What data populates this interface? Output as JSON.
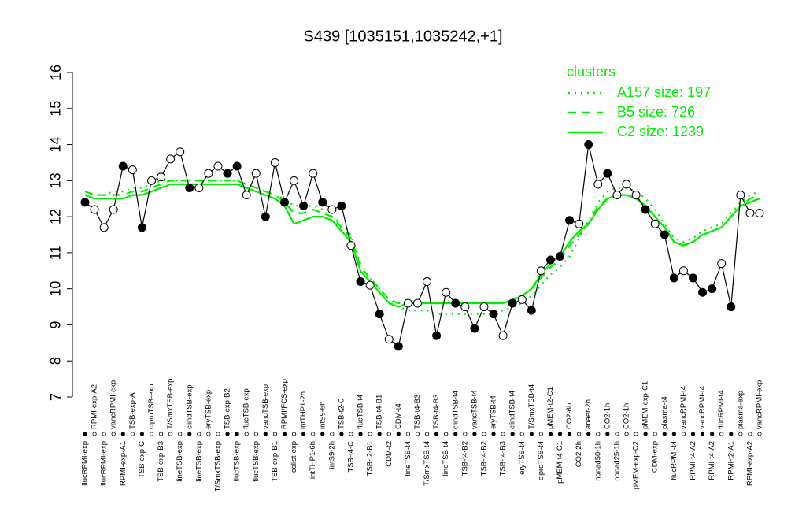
{
  "chart_data": {
    "type": "line",
    "title": "S439 [1035151,1035242,+1]",
    "categories": [
      "flucRPMI-exp",
      "RPMI-exp-A2",
      "flucRPMI-exp",
      "vancRPMI-exp",
      "RPMI-exp-A1",
      "TSB-exp-A",
      "TSB-exp-C",
      "ciproTSB-exp",
      "TSB-exp-B3",
      "T/SmxTSB-exp",
      "lineTSB-exp",
      "clindTSB-exp",
      "lineTSB-exp",
      "eryTSB-exp",
      "T/SmxTSB-exp",
      "TSB-exp-B2",
      "flucTSB-exp",
      "flucTSB-exp",
      "flucTSB-exp",
      "vancTSB-exp",
      "TSB-exp-B1",
      "RPMI/FCS-exp",
      "colist-exp",
      "intTHP1-2h",
      "intTHP1-6h",
      "intS9-6h",
      "intS9-2h",
      "TSB-t2-C",
      "TSB-t4-C",
      "flucTSB-t4",
      "TSB-t2-B1",
      "TSB-t4-B1",
      "CDM-t2",
      "CDM-t4",
      "lineTSB-t4",
      "TSB-t4-B3",
      "T/SmxTSB-t4",
      "TSB-t4-B3",
      "lineTSB-t4",
      "clindTSB-t4",
      "TSB-t4-B2",
      "vancTSB-t4",
      "TSB-t4-B2",
      "eryTSB-t4",
      "TSB-t4-B3",
      "clindTSB-t4",
      "eryTSB-t4",
      "T/SmxTSB-t4",
      "ciproTSB-t4",
      "pMEM-t2-C1",
      "pMEM-t4-C1",
      "CO2-6h",
      "CO2-2h",
      "anaer-2h",
      "nonad50-1h",
      "CO2-1h",
      "nonad25-1h",
      "CO2-1h",
      "pMEM-exp-C2",
      "pMEM-exp-C1",
      "CDM-exp",
      "plasma-t4",
      "flucRPMI-t4",
      "vancRPMI-t4",
      "RPMI-t4-A2",
      "vancRPMI-t4",
      "RPMI-t4-A2",
      "flucRPMI-t4",
      "RPMI-t2-A1",
      "plasma-exp",
      "RPMI-exp-A2",
      "vancRPMI-exp"
    ],
    "values": [
      12.4,
      12.2,
      11.7,
      12.2,
      13.4,
      13.3,
      11.7,
      13.0,
      13.1,
      13.6,
      13.8,
      12.8,
      12.8,
      13.2,
      13.4,
      13.2,
      13.4,
      12.6,
      13.2,
      12.0,
      13.5,
      12.4,
      13.0,
      12.3,
      13.2,
      12.4,
      12.2,
      12.3,
      11.2,
      10.2,
      10.1,
      9.3,
      8.6,
      8.4,
      9.6,
      9.6,
      10.2,
      8.7,
      9.9,
      9.6,
      9.5,
      8.9,
      9.5,
      9.3,
      8.7,
      9.6,
      9.7,
      9.4,
      10.5,
      10.8,
      10.9,
      11.9,
      11.8,
      14.0,
      12.9,
      13.2,
      12.6,
      12.9,
      12.6,
      12.2,
      11.8,
      11.5,
      10.3,
      10.5,
      10.3,
      9.9,
      10.0,
      10.7,
      9.5,
      12.6,
      12.1,
      12.1
    ],
    "point_colors": [
      "#000000",
      "#ffffff",
      "#ffffff",
      "#ffffff",
      "#000000",
      "#ffffff",
      "#000000",
      "#ffffff",
      "#ffffff",
      "#ffffff",
      "#ffffff",
      "#000000",
      "#ffffff",
      "#ffffff",
      "#ffffff",
      "#000000",
      "#000000",
      "#ffffff",
      "#ffffff",
      "#000000",
      "#ffffff",
      "#000000",
      "#ffffff",
      "#000000",
      "#ffffff",
      "#000000",
      "#ffffff",
      "#000000",
      "#ffffff",
      "#000000",
      "#ffffff",
      "#000000",
      "#ffffff",
      "#000000",
      "#ffffff",
      "#ffffff",
      "#ffffff",
      "#000000",
      "#ffffff",
      "#000000",
      "#ffffff",
      "#000000",
      "#ffffff",
      "#000000",
      "#ffffff",
      "#000000",
      "#ffffff",
      "#000000",
      "#ffffff",
      "#000000",
      "#000000",
      "#000000",
      "#ffffff",
      "#000000",
      "#ffffff",
      "#000000",
      "#ffffff",
      "#ffffff",
      "#ffffff",
      "#000000",
      "#ffffff",
      "#000000",
      "#000000",
      "#ffffff",
      "#000000",
      "#000000",
      "#000000",
      "#ffffff",
      "#000000",
      "#ffffff",
      "#ffffff",
      "#ffffff"
    ],
    "line_color": "#000000",
    "legend_title": "clusters",
    "series": [
      {
        "name": "A157 size: 197",
        "color": "#00ee00",
        "dash": "dotted",
        "values": [
          12.7,
          12.6,
          12.6,
          12.7,
          12.7,
          12.8,
          12.8,
          12.9,
          13.0,
          13.0,
          13.0,
          13.0,
          13.0,
          13.0,
          13.0,
          13.0,
          13.0,
          12.9,
          12.8,
          12.7,
          12.6,
          12.5,
          12.3,
          12.3,
          12.3,
          12.2,
          12.0,
          11.8,
          11.5,
          10.7,
          10.3,
          10.0,
          9.7,
          9.5,
          9.4,
          9.4,
          9.4,
          9.3,
          9.3,
          9.3,
          9.3,
          9.3,
          9.3,
          9.3,
          9.4,
          9.5,
          9.6,
          9.8,
          10.1,
          10.4,
          10.6,
          10.9,
          11.4,
          11.9,
          12.4,
          12.7,
          12.8,
          12.8,
          12.7,
          12.5,
          12.2,
          11.8,
          11.4,
          11.3,
          11.4,
          11.6,
          11.7,
          11.8,
          12.1,
          12.4,
          12.6,
          12.7
        ]
      },
      {
        "name": "B5 size: 726",
        "color": "#00ee00",
        "dash": "dashed",
        "values": [
          12.7,
          12.6,
          12.6,
          12.6,
          12.6,
          12.7,
          12.7,
          12.8,
          12.9,
          13.0,
          13.0,
          13.0,
          13.0,
          13.0,
          13.0,
          13.0,
          13.0,
          12.9,
          12.8,
          12.7,
          12.6,
          12.4,
          12.1,
          12.1,
          12.2,
          12.1,
          12.0,
          11.7,
          11.4,
          10.6,
          10.3,
          10.0,
          9.7,
          9.6,
          9.6,
          9.6,
          9.6,
          9.6,
          9.6,
          9.6,
          9.6,
          9.6,
          9.6,
          9.6,
          9.6,
          9.7,
          9.8,
          10.0,
          10.3,
          10.6,
          10.8,
          11.2,
          11.5,
          11.8,
          12.3,
          12.5,
          12.6,
          12.6,
          12.5,
          12.3,
          12.0,
          11.7,
          11.3,
          11.2,
          11.3,
          11.5,
          11.6,
          11.7,
          12.0,
          12.3,
          12.5,
          12.6
        ]
      },
      {
        "name": "C2 size: 1239",
        "color": "#00ee00",
        "dash": "solid",
        "values": [
          12.6,
          12.5,
          12.5,
          12.5,
          12.5,
          12.6,
          12.6,
          12.7,
          12.8,
          12.9,
          12.9,
          12.9,
          12.9,
          12.9,
          12.9,
          12.9,
          12.9,
          12.8,
          12.7,
          12.6,
          12.5,
          12.3,
          11.8,
          11.9,
          12.0,
          12.0,
          11.9,
          11.6,
          11.3,
          10.5,
          10.2,
          9.9,
          9.6,
          9.5,
          9.6,
          9.6,
          9.6,
          9.6,
          9.6,
          9.6,
          9.6,
          9.6,
          9.6,
          9.6,
          9.6,
          9.7,
          9.8,
          10.0,
          10.4,
          10.7,
          10.9,
          11.3,
          11.6,
          11.8,
          12.2,
          12.5,
          12.6,
          12.6,
          12.5,
          12.3,
          12.0,
          11.7,
          11.3,
          11.2,
          11.3,
          11.5,
          11.6,
          11.7,
          12.0,
          12.3,
          12.4,
          12.5
        ]
      }
    ],
    "ylim": [
      7,
      16
    ],
    "yticks": [
      7,
      8,
      9,
      10,
      11,
      12,
      13,
      14,
      15,
      16
    ],
    "grid": false,
    "legend": "top-right"
  }
}
